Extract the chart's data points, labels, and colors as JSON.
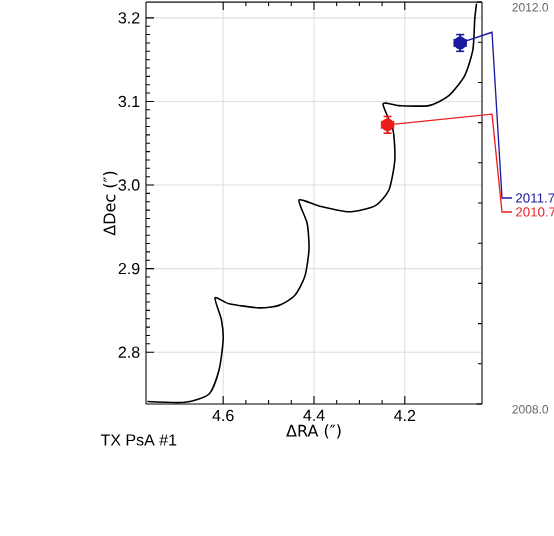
{
  "chart_data": {
    "type": "line",
    "xlabel": "ΔRA (″)",
    "ylabel": "ΔDec (″)",
    "xlim": [
      4.77,
      4.03
    ],
    "ylim": [
      2.738,
      3.219
    ],
    "xticks": [
      4.6,
      4.4,
      4.2
    ],
    "yticks": [
      2.8,
      2.9,
      {
        "value": 3.0,
        "label": "3.0"
      },
      3.1,
      3.2
    ],
    "y2lim": [
      2008.0,
      2012.0
    ],
    "y2ticks": [
      {
        "value": 2008,
        "label": "2008.0"
      },
      {
        "value": 2012,
        "label": "2012.0"
      }
    ],
    "grid": true,
    "series": [
      {
        "type": "line",
        "color": "#000000",
        "x": [
          4.767,
          4.684,
          4.631,
          4.609,
          4.6,
          4.604,
          4.618,
          4.587,
          4.521,
          4.477,
          4.442,
          4.42,
          4.411,
          4.415,
          4.433,
          4.389,
          4.323,
          4.266,
          4.235,
          4.222,
          4.226,
          4.248,
          4.213,
          4.147,
          4.103,
          4.068,
          4.05,
          4.046,
          4.042
        ],
        "values": [
          2.741,
          2.74,
          2.75,
          2.779,
          2.815,
          2.839,
          2.865,
          2.858,
          2.853,
          2.856,
          2.868,
          2.891,
          2.923,
          2.954,
          2.982,
          2.975,
          2.968,
          2.975,
          2.994,
          3.03,
          3.066,
          3.097,
          3.095,
          3.095,
          3.107,
          3.131,
          3.162,
          3.198,
          3.217
        ]
      },
      {
        "type": "scatter",
        "color": "#1a1aa0",
        "x": [
          4.078
        ],
        "values": [
          3.17
        ],
        "errors": [
          0.01
        ],
        "xerrors": [
          0.013
        ]
      },
      {
        "type": "scatter",
        "color": "#ee1c1c",
        "x": [
          4.238
        ],
        "values": [
          3.072
        ],
        "errors": [
          0.01
        ],
        "xerrors": [
          0.013
        ]
      }
    ],
    "annotations": [
      {
        "text": "2011.7",
        "x": 4.078,
        "y": 3.17
      },
      {
        "text": "2010.7",
        "x": 4.238,
        "y": 3.072
      },
      "TX PsA #1"
    ]
  }
}
